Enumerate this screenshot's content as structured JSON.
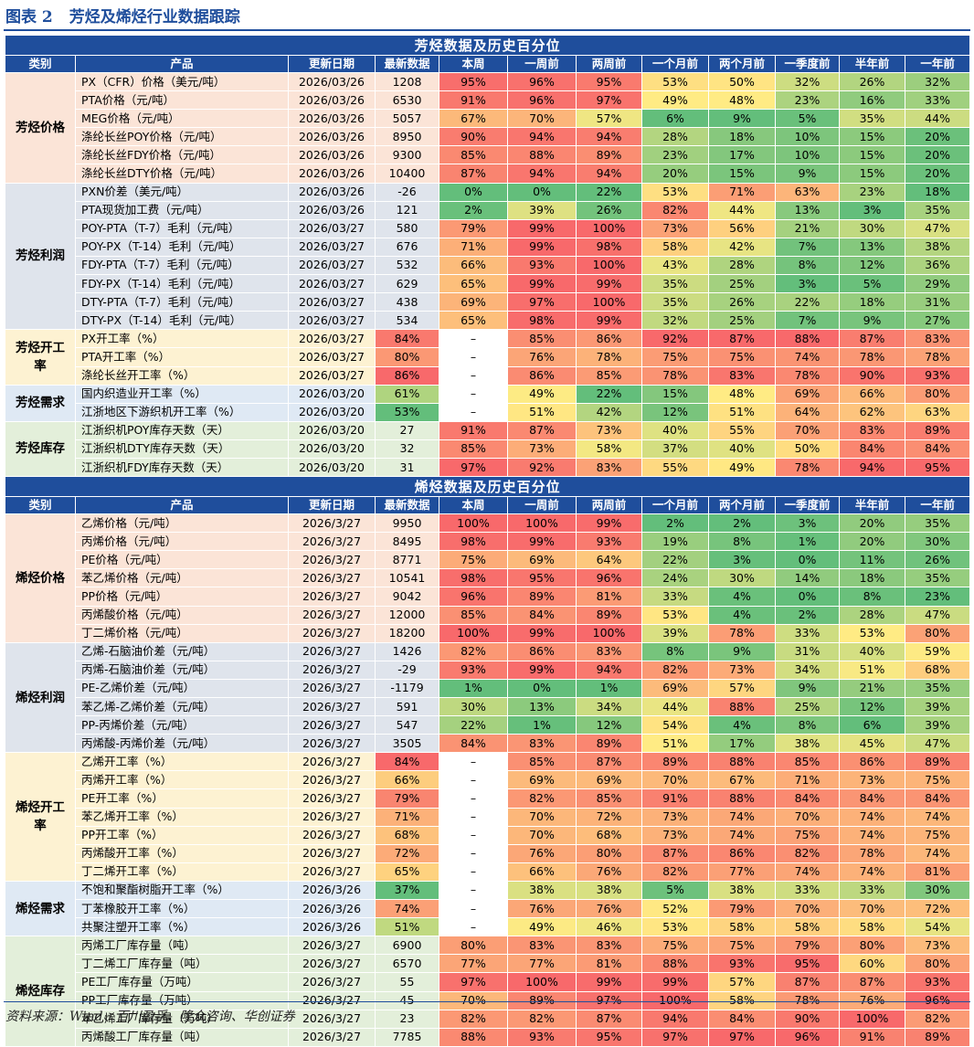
{
  "header": {
    "label": "图表 2",
    "title": "芳烃及烯烃行业数据跟踪"
  },
  "tables": [
    {
      "title": "芳烃数据及历史百分位",
      "columns": [
        "类别",
        "产品",
        "更新日期",
        "最新数据",
        "本周",
        "一周前",
        "两周前",
        "一个月前",
        "两个月前",
        "一季度前",
        "半年前",
        "一年前"
      ],
      "groups": [
        {
          "category": "芳烃价格",
          "rows": [
            [
              "PX（CFR）价格（美元/吨）",
              "2026/03/26",
              "1208",
              "95%",
              "96%",
              "95%",
              "53%",
              "50%",
              "32%",
              "26%",
              "32%"
            ],
            [
              "PTA价格（元/吨）",
              "2026/03/26",
              "6530",
              "91%",
              "96%",
              "97%",
              "49%",
              "48%",
              "23%",
              "16%",
              "33%"
            ],
            [
              "MEG价格（元/吨）",
              "2026/03/26",
              "5057",
              "67%",
              "70%",
              "57%",
              "6%",
              "9%",
              "5%",
              "35%",
              "44%"
            ],
            [
              "涤纶长丝POY价格（元/吨）",
              "2026/03/26",
              "8950",
              "90%",
              "94%",
              "94%",
              "28%",
              "18%",
              "10%",
              "15%",
              "20%"
            ],
            [
              "涤纶长丝FDY价格（元/吨）",
              "2026/03/26",
              "9300",
              "85%",
              "88%",
              "89%",
              "23%",
              "17%",
              "10%",
              "15%",
              "20%"
            ],
            [
              "涤纶长丝DTY价格（元/吨）",
              "2026/03/26",
              "10400",
              "87%",
              "94%",
              "94%",
              "20%",
              "15%",
              "9%",
              "15%",
              "20%"
            ]
          ]
        },
        {
          "category": "芳烃利润",
          "rows": [
            [
              "PXN价差（美元/吨）",
              "2026/03/26",
              "-26",
              "0%",
              "0%",
              "22%",
              "53%",
              "71%",
              "63%",
              "23%",
              "18%"
            ],
            [
              "PTA现货加工费（元/吨）",
              "2026/03/26",
              "121",
              "2%",
              "39%",
              "26%",
              "82%",
              "44%",
              "13%",
              "3%",
              "35%"
            ],
            [
              "POY-PTA（T-7）毛利（元/吨）",
              "2026/03/27",
              "580",
              "79%",
              "99%",
              "100%",
              "73%",
              "56%",
              "21%",
              "30%",
              "47%"
            ],
            [
              "POY-PX（T-14）毛利（元/吨）",
              "2026/03/27",
              "676",
              "71%",
              "99%",
              "98%",
              "58%",
              "42%",
              "7%",
              "13%",
              "38%"
            ],
            [
              "FDY-PTA（T-7）毛利（元/吨）",
              "2026/03/27",
              "532",
              "66%",
              "93%",
              "100%",
              "43%",
              "28%",
              "8%",
              "12%",
              "36%"
            ],
            [
              "FDY-PX（T-14）毛利（元/吨）",
              "2026/03/27",
              "629",
              "65%",
              "99%",
              "99%",
              "35%",
              "25%",
              "3%",
              "5%",
              "29%"
            ],
            [
              "DTY-PTA（T-7）毛利（元/吨）",
              "2026/03/27",
              "438",
              "69%",
              "97%",
              "100%",
              "35%",
              "26%",
              "22%",
              "18%",
              "31%"
            ],
            [
              "DTY-PX（T-14）毛利（元/吨）",
              "2026/03/27",
              "534",
              "65%",
              "98%",
              "99%",
              "32%",
              "25%",
              "7%",
              "9%",
              "27%"
            ]
          ]
        },
        {
          "category": "芳烃开工率",
          "rows": [
            [
              "PX开工率（%）",
              "2026/03/27",
              "84%",
              "–",
              "85%",
              "86%",
              "92%",
              "87%",
              "88%",
              "87%",
              "83%"
            ],
            [
              "PTA开工率（%）",
              "2026/03/27",
              "80%",
              "–",
              "76%",
              "78%",
              "75%",
              "75%",
              "74%",
              "78%",
              "78%"
            ],
            [
              "涤纶长丝开工率（%）",
              "2026/03/27",
              "86%",
              "–",
              "86%",
              "85%",
              "78%",
              "83%",
              "78%",
              "90%",
              "93%"
            ]
          ]
        },
        {
          "category": "芳烃需求",
          "rows": [
            [
              "国内织造业开工率（%）",
              "2026/03/20",
              "61%",
              "–",
              "49%",
              "22%",
              "15%",
              "48%",
              "69%",
              "66%",
              "80%"
            ],
            [
              "江浙地区下游织机开工率（%）",
              "2026/03/20",
              "53%",
              "–",
              "51%",
              "42%",
              "12%",
              "51%",
              "64%",
              "62%",
              "63%"
            ]
          ]
        },
        {
          "category": "芳烃库存",
          "rows": [
            [
              "江浙织机POY库存天数（天）",
              "2026/03/20",
              "27",
              "91%",
              "87%",
              "73%",
              "40%",
              "55%",
              "70%",
              "83%",
              "89%"
            ],
            [
              "江浙织机DTY库存天数（天）",
              "2026/03/20",
              "32",
              "85%",
              "73%",
              "58%",
              "37%",
              "40%",
              "50%",
              "84%",
              "84%"
            ],
            [
              "江浙织机FDY库存天数（天）",
              "2026/03/20",
              "31",
              "97%",
              "92%",
              "83%",
              "55%",
              "49%",
              "78%",
              "94%",
              "95%"
            ]
          ]
        }
      ]
    },
    {
      "title": "烯烃数据及历史百分位",
      "columns": [
        "类别",
        "产品",
        "更新日期",
        "最新数据",
        "本周",
        "一周前",
        "两周前",
        "一个月前",
        "两个月前",
        "一季度前",
        "半年前",
        "一年前"
      ],
      "groups": [
        {
          "category": "烯烃价格",
          "rows": [
            [
              "乙烯价格（元/吨）",
              "2026/3/27",
              "9950",
              "100%",
              "100%",
              "99%",
              "2%",
              "2%",
              "3%",
              "20%",
              "35%"
            ],
            [
              "丙烯价格（元/吨）",
              "2026/3/27",
              "8495",
              "98%",
              "99%",
              "93%",
              "19%",
              "8%",
              "1%",
              "20%",
              "30%"
            ],
            [
              "PE价格（元/吨）",
              "2026/3/27",
              "8771",
              "75%",
              "69%",
              "64%",
              "22%",
              "3%",
              "0%",
              "11%",
              "26%"
            ],
            [
              "苯乙烯价格（元/吨）",
              "2026/3/27",
              "10541",
              "98%",
              "95%",
              "96%",
              "24%",
              "30%",
              "14%",
              "18%",
              "35%"
            ],
            [
              "PP价格（元/吨）",
              "2026/3/27",
              "9042",
              "96%",
              "89%",
              "81%",
              "33%",
              "4%",
              "0%",
              "8%",
              "23%"
            ],
            [
              "丙烯酸价格（元/吨）",
              "2026/3/27",
              "12000",
              "85%",
              "84%",
              "89%",
              "53%",
              "4%",
              "2%",
              "28%",
              "47%"
            ],
            [
              "丁二烯价格（元/吨）",
              "2026/3/27",
              "18200",
              "100%",
              "99%",
              "100%",
              "39%",
              "78%",
              "33%",
              "53%",
              "80%"
            ]
          ]
        },
        {
          "category": "烯烃利润",
          "rows": [
            [
              "乙烯-石脑油价差（元/吨）",
              "2026/3/27",
              "1426",
              "82%",
              "86%",
              "83%",
              "8%",
              "9%",
              "31%",
              "40%",
              "59%"
            ],
            [
              "丙烯-石脑油价差（元/吨）",
              "2026/3/27",
              "-29",
              "93%",
              "99%",
              "94%",
              "82%",
              "73%",
              "34%",
              "51%",
              "68%"
            ],
            [
              "PE-乙烯价差（元/吨）",
              "2026/3/27",
              "-1179",
              "1%",
              "0%",
              "1%",
              "69%",
              "57%",
              "9%",
              "21%",
              "35%"
            ],
            [
              "苯乙烯-乙烯价差（元/吨）",
              "2026/3/27",
              "591",
              "30%",
              "13%",
              "34%",
              "44%",
              "88%",
              "25%",
              "12%",
              "39%"
            ],
            [
              "PP-丙烯价差（元/吨）",
              "2026/3/27",
              "547",
              "22%",
              "1%",
              "12%",
              "54%",
              "4%",
              "8%",
              "6%",
              "39%"
            ],
            [
              "丙烯酸-丙烯价差（元/吨）",
              "2026/3/27",
              "3505",
              "84%",
              "83%",
              "89%",
              "51%",
              "17%",
              "38%",
              "45%",
              "47%"
            ]
          ]
        },
        {
          "category": "烯烃开工率",
          "rows": [
            [
              "乙烯开工率（%）",
              "2026/3/27",
              "84%",
              "–",
              "85%",
              "87%",
              "89%",
              "88%",
              "85%",
              "86%",
              "89%"
            ],
            [
              "丙烯开工率（%）",
              "2026/3/27",
              "66%",
              "–",
              "69%",
              "69%",
              "70%",
              "67%",
              "71%",
              "73%",
              "75%"
            ],
            [
              "PE开工率（%）",
              "2026/3/27",
              "79%",
              "–",
              "82%",
              "85%",
              "91%",
              "88%",
              "84%",
              "84%",
              "84%"
            ],
            [
              "苯乙烯开工率（%）",
              "2026/3/27",
              "71%",
              "–",
              "70%",
              "72%",
              "73%",
              "74%",
              "70%",
              "74%",
              "74%"
            ],
            [
              "PP开工率（%）",
              "2026/3/27",
              "68%",
              "–",
              "70%",
              "68%",
              "73%",
              "74%",
              "75%",
              "74%",
              "75%"
            ],
            [
              "丙烯酸开工率（%）",
              "2026/3/27",
              "72%",
              "–",
              "76%",
              "80%",
              "87%",
              "86%",
              "82%",
              "78%",
              "74%"
            ],
            [
              "丁二烯开工率（%）",
              "2026/3/27",
              "65%",
              "–",
              "66%",
              "76%",
              "82%",
              "77%",
              "74%",
              "74%",
              "81%"
            ]
          ]
        },
        {
          "category": "烯烃需求",
          "rows": [
            [
              "不饱和聚酯树脂开工率（%）",
              "2026/3/26",
              "37%",
              "–",
              "38%",
              "38%",
              "5%",
              "38%",
              "33%",
              "33%",
              "30%"
            ],
            [
              "丁苯橡胶开工率（%）",
              "2026/3/26",
              "74%",
              "–",
              "76%",
              "76%",
              "52%",
              "79%",
              "70%",
              "70%",
              "72%"
            ],
            [
              "共聚注塑开工率（%）",
              "2026/3/26",
              "51%",
              "–",
              "49%",
              "46%",
              "53%",
              "58%",
              "58%",
              "58%",
              "54%"
            ]
          ]
        },
        {
          "category": "烯烃库存",
          "rows": [
            [
              "丙烯工厂库存量（吨）",
              "2026/3/27",
              "6900",
              "80%",
              "83%",
              "83%",
              "75%",
              "75%",
              "79%",
              "80%",
              "73%"
            ],
            [
              "丁二烯工厂库存量（吨）",
              "2026/3/27",
              "6570",
              "77%",
              "77%",
              "81%",
              "88%",
              "93%",
              "95%",
              "60%",
              "80%"
            ],
            [
              "PE工厂库存量（万吨）",
              "2026/3/27",
              "55",
              "97%",
              "100%",
              "99%",
              "99%",
              "57%",
              "87%",
              "87%",
              "93%"
            ],
            [
              "PP工厂库存量（万吨）",
              "2026/3/27",
              "45",
              "70%",
              "89%",
              "97%",
              "100%",
              "58%",
              "78%",
              "76%",
              "96%"
            ],
            [
              "苯乙烯工厂库存量（万吨）",
              "2026/3/27",
              "23",
              "82%",
              "82%",
              "87%",
              "94%",
              "84%",
              "90%",
              "100%",
              "82%"
            ],
            [
              "丙烯酸工厂库存量（吨）",
              "2026/3/27",
              "7785",
              "88%",
              "93%",
              "95%",
              "97%",
              "97%",
              "96%",
              "91%",
              "89%"
            ]
          ]
        }
      ]
    }
  ],
  "source": "资料来源：Wind、百川盈孚、隆众咨询、华创证券"
}
